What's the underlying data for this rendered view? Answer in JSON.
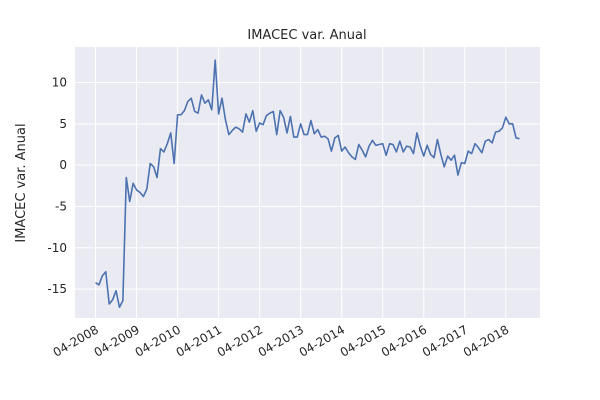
{
  "chart_data": {
    "type": "line",
    "title": "IMACEC var. Anual",
    "y_label": "IMACEC var. Anual",
    "x": [
      "2008-04",
      "2008-05",
      "2008-06",
      "2008-07",
      "2008-08",
      "2008-09",
      "2008-10",
      "2008-11",
      "2008-12",
      "2009-01",
      "2009-02",
      "2009-03",
      "2009-04",
      "2009-05",
      "2009-06",
      "2009-07",
      "2009-08",
      "2009-09",
      "2009-10",
      "2009-11",
      "2009-12",
      "2010-01",
      "2010-02",
      "2010-03",
      "2010-04",
      "2010-05",
      "2010-06",
      "2010-07",
      "2010-08",
      "2010-09",
      "2010-10",
      "2010-11",
      "2010-12",
      "2011-01",
      "2011-02",
      "2011-03",
      "2011-04",
      "2011-05",
      "2011-06",
      "2011-07",
      "2011-08",
      "2011-09",
      "2011-10",
      "2011-11",
      "2011-12",
      "2012-01",
      "2012-02",
      "2012-03",
      "2012-04",
      "2012-05",
      "2012-06",
      "2012-07",
      "2012-08",
      "2012-09",
      "2012-10",
      "2012-11",
      "2012-12",
      "2013-01",
      "2013-02",
      "2013-03",
      "2013-04",
      "2013-05",
      "2013-06",
      "2013-07",
      "2013-08",
      "2013-09",
      "2013-10",
      "2013-11",
      "2013-12",
      "2014-01",
      "2014-02",
      "2014-03",
      "2014-04",
      "2014-05",
      "2014-06",
      "2014-07",
      "2014-08",
      "2014-09",
      "2014-10",
      "2014-11",
      "2014-12",
      "2015-01",
      "2015-02",
      "2015-03",
      "2015-04",
      "2015-05",
      "2015-06",
      "2015-07",
      "2015-08",
      "2015-09",
      "2015-10",
      "2015-11",
      "2015-12",
      "2016-01",
      "2016-02",
      "2016-03",
      "2016-04",
      "2016-05",
      "2016-06",
      "2016-07",
      "2016-08",
      "2016-09",
      "2016-10",
      "2016-11",
      "2016-12",
      "2017-01",
      "2017-02",
      "2017-03",
      "2017-04",
      "2017-05",
      "2017-06",
      "2017-07",
      "2017-08",
      "2017-09",
      "2017-10",
      "2017-11",
      "2017-12",
      "2018-01",
      "2018-02",
      "2018-03",
      "2018-04",
      "2018-05",
      "2018-06",
      "2018-07",
      "2018-08"
    ],
    "series": [
      {
        "name": "IMACEC var. Anual",
        "color": "#4c72b0",
        "values": [
          -14.2,
          -14.5,
          -13.4,
          -12.9,
          -16.8,
          -16.3,
          -15.2,
          -17.2,
          -16.4,
          -1.5,
          -4.4,
          -2.2,
          -3.0,
          -3.3,
          -3.8,
          -2.9,
          0.2,
          -0.2,
          -1.5,
          2.0,
          1.6,
          2.6,
          3.9,
          0.2,
          6.1,
          6.1,
          6.6,
          7.7,
          8.1,
          6.5,
          6.3,
          8.5,
          7.5,
          7.9,
          6.7,
          12.7,
          6.2,
          8.1,
          5.5,
          3.7,
          4.2,
          4.6,
          4.4,
          4.0,
          6.2,
          5.2,
          6.6,
          4.1,
          5.1,
          4.9,
          6.0,
          6.3,
          6.5,
          3.7,
          6.6,
          5.8,
          3.9,
          5.9,
          3.4,
          3.4,
          5.0,
          3.7,
          3.7,
          5.4,
          3.8,
          4.3,
          3.4,
          3.5,
          3.2,
          1.7,
          3.3,
          3.6,
          1.7,
          2.2,
          1.5,
          1.0,
          0.7,
          2.5,
          1.8,
          1.0,
          2.3,
          3.0,
          2.4,
          2.5,
          2.6,
          1.2,
          2.6,
          2.5,
          1.6,
          2.9,
          1.6,
          2.3,
          2.2,
          1.4,
          3.9,
          2.3,
          1.1,
          2.4,
          1.3,
          0.9,
          3.1,
          1.3,
          -0.2,
          1.1,
          0.6,
          1.2,
          -1.2,
          0.3,
          0.2,
          1.7,
          1.4,
          2.6,
          2.1,
          1.5,
          2.9,
          3.1,
          2.7,
          4.0,
          4.1,
          4.5,
          5.8,
          5.0,
          5.0,
          3.3,
          3.2
        ]
      }
    ],
    "xlim": [
      "2007-10",
      "2019-02"
    ],
    "xticks": [
      {
        "value": "2008-04",
        "label": "04-2008"
      },
      {
        "value": "2009-04",
        "label": "04-2009"
      },
      {
        "value": "2010-04",
        "label": "04-2010"
      },
      {
        "value": "2011-04",
        "label": "04-2011"
      },
      {
        "value": "2012-04",
        "label": "04-2012"
      },
      {
        "value": "2013-04",
        "label": "04-2013"
      },
      {
        "value": "2014-04",
        "label": "04-2014"
      },
      {
        "value": "2015-04",
        "label": "04-2015"
      },
      {
        "value": "2016-04",
        "label": "04-2016"
      },
      {
        "value": "2017-04",
        "label": "04-2017"
      },
      {
        "value": "2018-04",
        "label": "04-2018"
      }
    ],
    "ylim": [
      -18.5,
      14.3
    ],
    "yticks": [
      -15,
      -10,
      -5,
      0,
      5,
      10
    ],
    "grid": true
  }
}
